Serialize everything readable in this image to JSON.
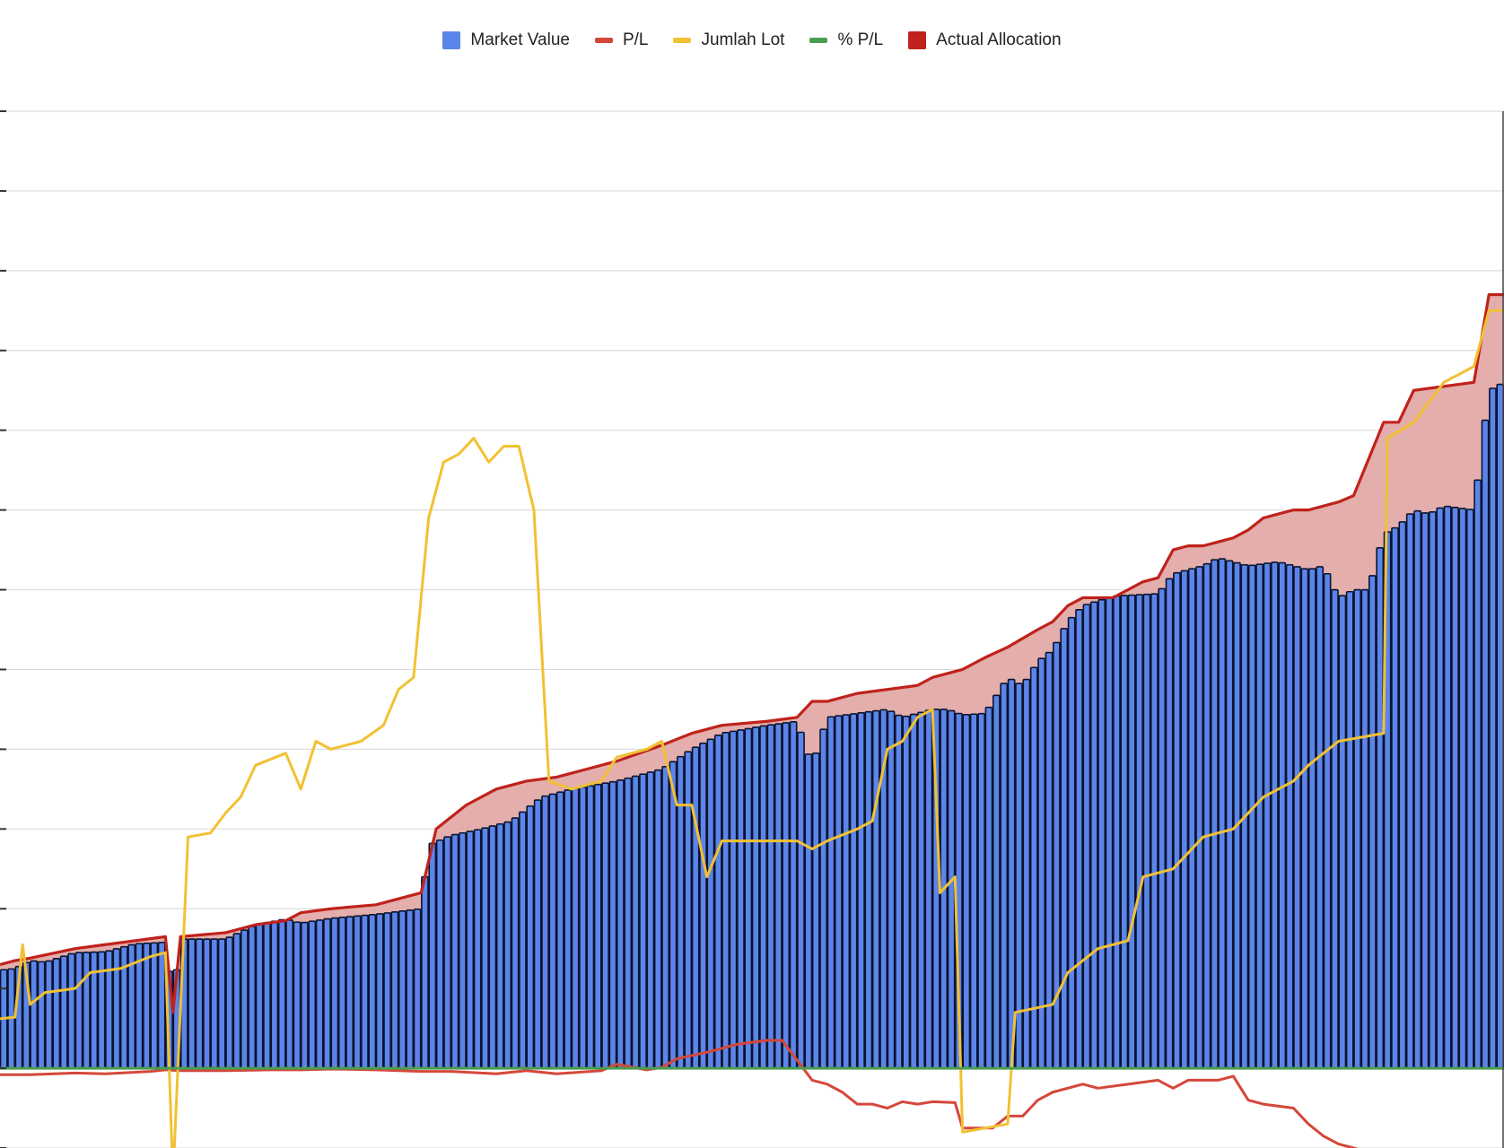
{
  "colors": {
    "market_value_fill": "#5b85e8",
    "market_value_outline": "#0b1430",
    "pl": "#d5473b",
    "jumlah_lot": "#f2c133",
    "pct_pl": "#4a9e4f",
    "actual_allocation": "#c0221c",
    "actual_allocation_fill": "#e3aeab",
    "gridline": "#dcdcdc",
    "axis": "#333333"
  },
  "chart_data": {
    "type": "bar",
    "title": "",
    "xlabel": "",
    "ylabel": "",
    "x_tick_labels": [],
    "y_tick_labels": [],
    "grid": true,
    "legend_position": "top",
    "ylim": [
      -1,
      12
    ],
    "x_range": [
      0,
      200
    ],
    "legend": [
      {
        "key": "market_value",
        "label": "Market Value",
        "marker": "box",
        "color": "#5b85e8"
      },
      {
        "key": "pl",
        "label": "P/L",
        "marker": "line",
        "color": "#d5473b"
      },
      {
        "key": "jumlah_lot",
        "label": "Jumlah Lot",
        "marker": "line",
        "color": "#f2c133"
      },
      {
        "key": "pct_pl",
        "label": "% P/L",
        "marker": "line",
        "color": "#4a9e4f"
      },
      {
        "key": "actual_allocation",
        "label": "Actual Allocation",
        "marker": "box",
        "color": "#c0221c"
      }
    ],
    "series": [
      {
        "key": "market_value",
        "type": "bar",
        "bar_count": 200,
        "points": [
          [
            0,
            1.23
          ],
          [
            2,
            1.25
          ],
          [
            4,
            1.35
          ],
          [
            6,
            1.33
          ],
          [
            10,
            1.45
          ],
          [
            14,
            1.46
          ],
          [
            18,
            1.56
          ],
          [
            22,
            1.58
          ],
          [
            23,
            0.85
          ],
          [
            24,
            1.62
          ],
          [
            30,
            1.62
          ],
          [
            34,
            1.8
          ],
          [
            38,
            1.87
          ],
          [
            40,
            1.82
          ],
          [
            44,
            1.88
          ],
          [
            50,
            1.93
          ],
          [
            56,
            2.0
          ],
          [
            57,
            2.8
          ],
          [
            60,
            2.92
          ],
          [
            64,
            3.0
          ],
          [
            68,
            3.1
          ],
          [
            72,
            3.4
          ],
          [
            76,
            3.5
          ],
          [
            82,
            3.6
          ],
          [
            88,
            3.75
          ],
          [
            92,
            4.0
          ],
          [
            96,
            4.2
          ],
          [
            102,
            4.3
          ],
          [
            106,
            4.35
          ],
          [
            108,
            3.8
          ],
          [
            110,
            4.4
          ],
          [
            114,
            4.45
          ],
          [
            118,
            4.5
          ],
          [
            120,
            4.4
          ],
          [
            124,
            4.5
          ],
          [
            126,
            4.5
          ],
          [
            128,
            4.43
          ],
          [
            131,
            4.45
          ],
          [
            134,
            4.9
          ],
          [
            136,
            4.8
          ],
          [
            138,
            5.1
          ],
          [
            140,
            5.25
          ],
          [
            142,
            5.6
          ],
          [
            144,
            5.8
          ],
          [
            148,
            5.92
          ],
          [
            152,
            5.94
          ],
          [
            154,
            5.95
          ],
          [
            156,
            6.2
          ],
          [
            160,
            6.3
          ],
          [
            162,
            6.4
          ],
          [
            166,
            6.3
          ],
          [
            170,
            6.35
          ],
          [
            174,
            6.25
          ],
          [
            176,
            6.3
          ],
          [
            178,
            5.9
          ],
          [
            180,
            6.0
          ],
          [
            182,
            6.0
          ],
          [
            184,
            6.7
          ],
          [
            186,
            6.8
          ],
          [
            188,
            7.0
          ],
          [
            190,
            6.95
          ],
          [
            192,
            7.05
          ],
          [
            196,
            7.0
          ],
          [
            198,
            8.5
          ],
          [
            200,
            8.6
          ]
        ]
      },
      {
        "key": "actual_allocation",
        "type": "area",
        "points": [
          [
            0,
            1.3
          ],
          [
            2,
            1.35
          ],
          [
            4,
            1.38
          ],
          [
            10,
            1.5
          ],
          [
            14,
            1.55
          ],
          [
            18,
            1.6
          ],
          [
            22,
            1.65
          ],
          [
            23,
            0.7
          ],
          [
            24,
            1.65
          ],
          [
            30,
            1.7
          ],
          [
            34,
            1.8
          ],
          [
            38,
            1.85
          ],
          [
            40,
            1.95
          ],
          [
            44,
            2.0
          ],
          [
            50,
            2.05
          ],
          [
            56,
            2.2
          ],
          [
            58,
            3.0
          ],
          [
            62,
            3.3
          ],
          [
            66,
            3.5
          ],
          [
            70,
            3.6
          ],
          [
            74,
            3.65
          ],
          [
            78,
            3.75
          ],
          [
            82,
            3.85
          ],
          [
            88,
            4.05
          ],
          [
            92,
            4.2
          ],
          [
            96,
            4.3
          ],
          [
            102,
            4.35
          ],
          [
            106,
            4.4
          ],
          [
            108,
            4.6
          ],
          [
            110,
            4.6
          ],
          [
            114,
            4.7
          ],
          [
            118,
            4.75
          ],
          [
            122,
            4.8
          ],
          [
            124,
            4.9
          ],
          [
            128,
            5.0
          ],
          [
            131,
            5.15
          ],
          [
            134,
            5.28
          ],
          [
            138,
            5.5
          ],
          [
            140,
            5.6
          ],
          [
            142,
            5.8
          ],
          [
            144,
            5.9
          ],
          [
            148,
            5.9
          ],
          [
            150,
            6.0
          ],
          [
            152,
            6.1
          ],
          [
            154,
            6.15
          ],
          [
            156,
            6.5
          ],
          [
            158,
            6.55
          ],
          [
            160,
            6.55
          ],
          [
            162,
            6.6
          ],
          [
            164,
            6.65
          ],
          [
            166,
            6.75
          ],
          [
            168,
            6.9
          ],
          [
            170,
            6.95
          ],
          [
            172,
            7.0
          ],
          [
            174,
            7.0
          ],
          [
            176,
            7.05
          ],
          [
            178,
            7.1
          ],
          [
            180,
            7.18
          ],
          [
            184,
            8.1
          ],
          [
            186,
            8.1
          ],
          [
            188,
            8.5
          ],
          [
            196,
            8.6
          ],
          [
            198,
            9.7
          ],
          [
            200,
            9.7
          ]
        ]
      },
      {
        "key": "pl",
        "type": "line",
        "points": [
          [
            0,
            -0.08
          ],
          [
            4,
            -0.08
          ],
          [
            10,
            -0.06
          ],
          [
            14,
            -0.07
          ],
          [
            20,
            -0.04
          ],
          [
            22,
            -0.02
          ],
          [
            24,
            -0.03
          ],
          [
            30,
            -0.03
          ],
          [
            36,
            -0.02
          ],
          [
            40,
            -0.02
          ],
          [
            44,
            -0.01
          ],
          [
            50,
            -0.02
          ],
          [
            56,
            -0.04
          ],
          [
            60,
            -0.04
          ],
          [
            66,
            -0.07
          ],
          [
            70,
            -0.03
          ],
          [
            74,
            -0.07
          ],
          [
            80,
            -0.03
          ],
          [
            82,
            0.05
          ],
          [
            86,
            -0.02
          ],
          [
            88,
            0.01
          ],
          [
            90,
            0.12
          ],
          [
            94,
            0.2
          ],
          [
            98,
            0.3
          ],
          [
            102,
            0.35
          ],
          [
            104,
            0.35
          ],
          [
            106,
            0.1
          ],
          [
            108,
            -0.15
          ],
          [
            110,
            -0.2
          ],
          [
            112,
            -0.3
          ],
          [
            114,
            -0.45
          ],
          [
            116,
            -0.45
          ],
          [
            118,
            -0.5
          ],
          [
            120,
            -0.42
          ],
          [
            122,
            -0.45
          ],
          [
            124,
            -0.42
          ],
          [
            127,
            -0.43
          ],
          [
            128,
            -0.75
          ],
          [
            132,
            -0.75
          ],
          [
            134,
            -0.6
          ],
          [
            136,
            -0.6
          ],
          [
            138,
            -0.4
          ],
          [
            140,
            -0.3
          ],
          [
            144,
            -0.2
          ],
          [
            146,
            -0.25
          ],
          [
            150,
            -0.2
          ],
          [
            154,
            -0.15
          ],
          [
            156,
            -0.25
          ],
          [
            158,
            -0.15
          ],
          [
            162,
            -0.15
          ],
          [
            164,
            -0.1
          ],
          [
            166,
            -0.4
          ],
          [
            168,
            -0.45
          ],
          [
            172,
            -0.5
          ],
          [
            174,
            -0.7
          ],
          [
            176,
            -0.85
          ],
          [
            178,
            -0.95
          ],
          [
            180,
            -1.0
          ],
          [
            184,
            -1.1
          ],
          [
            188,
            -1.15
          ],
          [
            192,
            -1.1
          ],
          [
            194,
            -1.45
          ],
          [
            196,
            -1.35
          ],
          [
            198,
            -1.3
          ],
          [
            200,
            -1.05
          ]
        ]
      },
      {
        "key": "jumlah_lot",
        "type": "line",
        "points": [
          [
            0,
            0.62
          ],
          [
            2,
            0.64
          ],
          [
            3,
            1.55
          ],
          [
            4,
            0.8
          ],
          [
            6,
            0.95
          ],
          [
            10,
            1.0
          ],
          [
            12,
            1.2
          ],
          [
            16,
            1.25
          ],
          [
            20,
            1.4
          ],
          [
            22,
            1.45
          ],
          [
            23,
            -1.4
          ],
          [
            25,
            2.9
          ],
          [
            28,
            2.95
          ],
          [
            30,
            3.2
          ],
          [
            32,
            3.4
          ],
          [
            34,
            3.8
          ],
          [
            38,
            3.95
          ],
          [
            40,
            3.5
          ],
          [
            42,
            4.1
          ],
          [
            44,
            4.0
          ],
          [
            48,
            4.1
          ],
          [
            51,
            4.3
          ],
          [
            53,
            4.75
          ],
          [
            55,
            4.9
          ],
          [
            57,
            6.9
          ],
          [
            59,
            7.6
          ],
          [
            61,
            7.7
          ],
          [
            63,
            7.9
          ],
          [
            65,
            7.6
          ],
          [
            67,
            7.8
          ],
          [
            69,
            7.8
          ],
          [
            71,
            7.0
          ],
          [
            73,
            3.6
          ],
          [
            76,
            3.5
          ],
          [
            80,
            3.6
          ],
          [
            82,
            3.9
          ],
          [
            86,
            4.0
          ],
          [
            88,
            4.1
          ],
          [
            90,
            3.3
          ],
          [
            92,
            3.3
          ],
          [
            94,
            2.4
          ],
          [
            96,
            2.85
          ],
          [
            100,
            2.85
          ],
          [
            106,
            2.85
          ],
          [
            108,
            2.75
          ],
          [
            110,
            2.85
          ],
          [
            114,
            3.0
          ],
          [
            116,
            3.1
          ],
          [
            118,
            4.0
          ],
          [
            120,
            4.1
          ],
          [
            122,
            4.4
          ],
          [
            124,
            4.5
          ],
          [
            125,
            2.2
          ],
          [
            127,
            2.4
          ],
          [
            128,
            -0.8
          ],
          [
            134,
            -0.7
          ],
          [
            135,
            0.7
          ],
          [
            140,
            0.8
          ],
          [
            142,
            1.2
          ],
          [
            146,
            1.5
          ],
          [
            150,
            1.6
          ],
          [
            152,
            2.4
          ],
          [
            156,
            2.5
          ],
          [
            160,
            2.9
          ],
          [
            164,
            3.0
          ],
          [
            168,
            3.4
          ],
          [
            172,
            3.6
          ],
          [
            174,
            3.8
          ],
          [
            178,
            4.1
          ],
          [
            184,
            4.2
          ],
          [
            184.5,
            7.9
          ],
          [
            188,
            8.1
          ],
          [
            192,
            8.6
          ],
          [
            196,
            8.8
          ],
          [
            198,
            9.5
          ],
          [
            200,
            9.5
          ]
        ]
      },
      {
        "key": "pct_pl",
        "type": "line",
        "points": [
          [
            0,
            0
          ],
          [
            200,
            0
          ]
        ]
      }
    ]
  }
}
